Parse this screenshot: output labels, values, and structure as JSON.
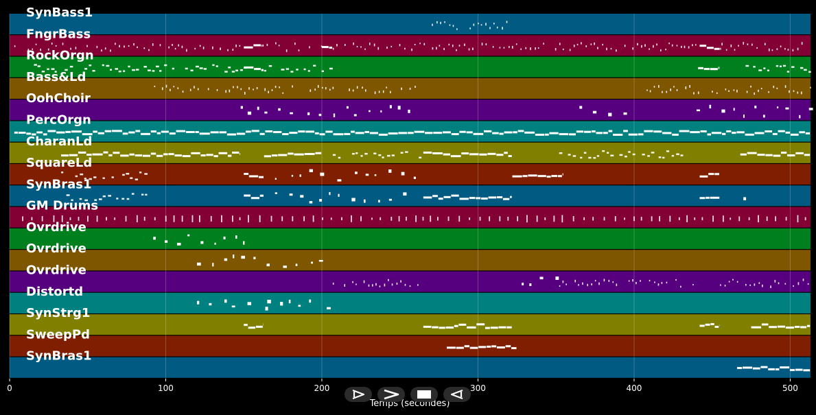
{
  "chart_data": {
    "type": "piano-roll",
    "xlabel": "Temps (secondes)",
    "xlim": [
      0,
      513
    ],
    "xticks": [
      0,
      100,
      200,
      300,
      400,
      500
    ],
    "grid": true,
    "tracks": [
      {
        "name": "SynBass1",
        "color": "#015a82",
        "segments": [
          [
            265,
            320,
            "dots"
          ]
        ]
      },
      {
        "name": "FngrBass",
        "color": "#820034",
        "segments": [
          [
            3,
            150,
            "dots"
          ],
          [
            150,
            162,
            "line"
          ],
          [
            162,
            200,
            "dots"
          ],
          [
            200,
            207,
            "line"
          ],
          [
            207,
            442,
            "dots"
          ],
          [
            442,
            456,
            "line"
          ],
          [
            456,
            513,
            "dots"
          ]
        ]
      },
      {
        "name": "RockOrgn",
        "color": "#007f1f",
        "segments": [
          [
            7,
            150,
            "dash"
          ],
          [
            150,
            163,
            "line"
          ],
          [
            163,
            207,
            "dash"
          ],
          [
            441,
            455,
            "line"
          ],
          [
            468,
            513,
            "dash"
          ]
        ]
      },
      {
        "name": "Bass&Ld",
        "color": "#7f5600",
        "segments": [
          [
            90,
            265,
            "dots"
          ],
          [
            408,
            513,
            "dots"
          ]
        ]
      },
      {
        "name": "OohChoir",
        "color": "#560080",
        "segments": [
          [
            148,
            260,
            "sparse"
          ],
          [
            365,
            400,
            "sparse"
          ],
          [
            440,
            513,
            "sparse"
          ]
        ]
      },
      {
        "name": "PercOrgn",
        "color": "#00807f",
        "segments": [
          [
            3,
            513,
            "line"
          ]
        ]
      },
      {
        "name": "CharanLd",
        "color": "#807f00",
        "segments": [
          [
            33,
            148,
            "line"
          ],
          [
            163,
            200,
            "line"
          ],
          [
            207,
            265,
            "dash"
          ],
          [
            265,
            322,
            "line"
          ],
          [
            352,
            435,
            "dash"
          ],
          [
            468,
            513,
            "line"
          ]
        ]
      },
      {
        "name": "SquareLd",
        "color": "#7f1e00",
        "segments": [
          [
            33,
            88,
            "dash"
          ],
          [
            150,
            163,
            "line"
          ],
          [
            170,
            265,
            "sparse"
          ],
          [
            322,
            355,
            "line"
          ],
          [
            442,
            455,
            "line"
          ]
        ]
      },
      {
        "name": "SynBras1",
        "color": "#015a82",
        "segments": [
          [
            33,
            88,
            "dash"
          ],
          [
            150,
            163,
            "line"
          ],
          [
            170,
            255,
            "sparse"
          ],
          [
            265,
            322,
            "line"
          ],
          [
            442,
            455,
            "line"
          ],
          [
            470,
            472,
            "sparse"
          ]
        ]
      },
      {
        "name": "GM Drums",
        "color": "#820034",
        "segments": [
          [
            8,
            513,
            "drums"
          ]
        ]
      },
      {
        "name": "Ovrdrive",
        "color": "#007f1f",
        "segments": [
          [
            92,
            150,
            "sparse"
          ]
        ]
      },
      {
        "name": "Ovrdrive",
        "color": "#7f5600",
        "segments": [
          [
            120,
            165,
            "sparse"
          ],
          [
            165,
            205,
            "sparse"
          ]
        ]
      },
      {
        "name": "Ovrdrive",
        "color": "#560080",
        "segments": [
          [
            207,
            263,
            "dots"
          ],
          [
            328,
            350,
            "sparse"
          ],
          [
            352,
            440,
            "dots"
          ],
          [
            455,
            513,
            "dots"
          ]
        ]
      },
      {
        "name": "Distortd",
        "color": "#00807f",
        "segments": [
          [
            120,
            165,
            "sparse"
          ],
          [
            165,
            207,
            "sparse"
          ]
        ]
      },
      {
        "name": "SynStrg1",
        "color": "#807f00",
        "segments": [
          [
            150,
            163,
            "line"
          ],
          [
            265,
            322,
            "line"
          ],
          [
            442,
            455,
            "line"
          ],
          [
            475,
            513,
            "line"
          ]
        ]
      },
      {
        "name": "SweepPd",
        "color": "#7f1e00",
        "segments": [
          [
            280,
            325,
            "line"
          ]
        ]
      },
      {
        "name": "SynBras1",
        "color": "#015a82",
        "segments": [
          [
            466,
            513,
            "line"
          ]
        ]
      }
    ]
  },
  "controls": [
    {
      "name": "play",
      "icon": "play-icon"
    },
    {
      "name": "forward",
      "icon": "forward-icon"
    },
    {
      "name": "stop",
      "icon": "stop-icon"
    },
    {
      "name": "back",
      "icon": "back-icon"
    }
  ]
}
